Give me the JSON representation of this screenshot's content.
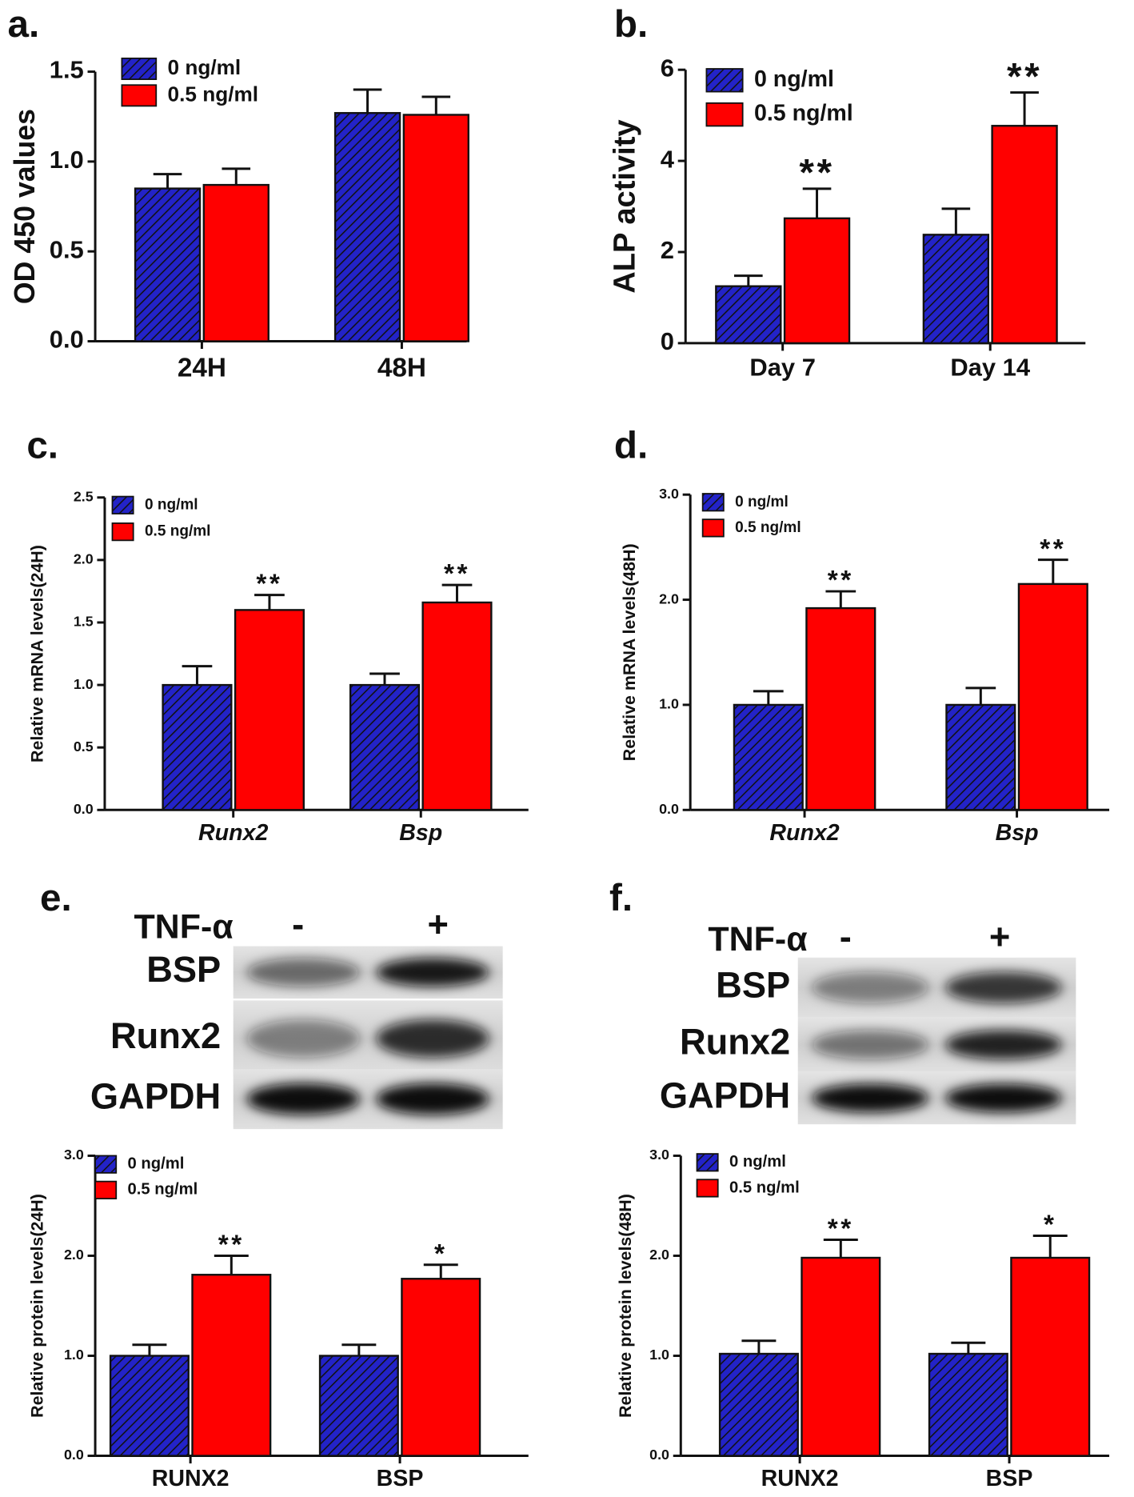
{
  "chart_data": [
    {
      "type": "bar",
      "label": "a.",
      "y_label": "OD 450 values",
      "categories": [
        "24H",
        "48H"
      ],
      "series": [
        {
          "name": "0 ng/ml",
          "color": "#2323c8",
          "hatch": true,
          "values": [
            0.85,
            1.27
          ],
          "errors": [
            0.08,
            0.13
          ]
        },
        {
          "name": "0.5 ng/ml",
          "color": "#ff0000",
          "hatch": false,
          "values": [
            0.87,
            1.26
          ],
          "errors": [
            0.09,
            0.1
          ]
        }
      ],
      "ylim": [
        0,
        1.5
      ],
      "yticks": [
        {
          "value": 0,
          "label": "0.0"
        },
        0.5,
        {
          "value": 1,
          "label": "1.0"
        },
        1.5
      ]
    },
    {
      "type": "bar",
      "label": "b.",
      "y_label": "ALP activity",
      "categories": [
        "Day 7",
        "Day 14"
      ],
      "series": [
        {
          "name": "0 ng/ml",
          "color": "#2323c8",
          "hatch": true,
          "values": [
            1.25,
            2.38
          ],
          "errors": [
            0.23,
            0.57
          ]
        },
        {
          "name": "0.5 ng/ml",
          "color": "#ff0000",
          "hatch": false,
          "values": [
            2.74,
            4.77
          ],
          "errors": [
            0.65,
            0.73
          ],
          "significance": [
            "**",
            "**"
          ]
        }
      ],
      "ylim": [
        0,
        6
      ],
      "yticks": [
        0,
        2,
        4,
        6
      ]
    },
    {
      "type": "bar",
      "label": "c.",
      "y_label": "Relative mRNA levels(24H)",
      "category_style": "italic",
      "categories": [
        "Runx2",
        "Bsp"
      ],
      "series": [
        {
          "name": "0 ng/ml",
          "color": "#2323c8",
          "hatch": true,
          "values": [
            1.0,
            1.0
          ],
          "errors": [
            0.15,
            0.09
          ]
        },
        {
          "name": "0.5 ng/ml",
          "color": "#ff0000",
          "hatch": false,
          "values": [
            1.6,
            1.66
          ],
          "errors": [
            0.12,
            0.14
          ],
          "significance": [
            "**",
            "**"
          ]
        }
      ],
      "ylim": [
        0,
        2.5
      ],
      "yticks": [
        {
          "value": 0,
          "label": "0.0"
        },
        0.5,
        {
          "value": 1,
          "label": "1.0"
        },
        1.5,
        {
          "value": 2,
          "label": "2.0"
        },
        2.5
      ]
    },
    {
      "type": "bar",
      "label": "d.",
      "y_label": "Relative mRNA levels(48H)",
      "category_style": "italic",
      "categories": [
        "Runx2",
        "Bsp"
      ],
      "series": [
        {
          "name": "0 ng/ml",
          "color": "#2323c8",
          "hatch": true,
          "values": [
            1.0,
            1.0
          ],
          "errors": [
            0.13,
            0.16
          ]
        },
        {
          "name": "0.5 ng/ml",
          "color": "#ff0000",
          "hatch": false,
          "values": [
            1.92,
            2.15
          ],
          "errors": [
            0.16,
            0.23
          ],
          "significance": [
            "**",
            "**"
          ]
        }
      ],
      "ylim": [
        0,
        3
      ],
      "yticks": [
        {
          "value": 0,
          "label": "0.0"
        },
        {
          "value": 1,
          "label": "1.0"
        },
        {
          "value": 2,
          "label": "2.0"
        },
        {
          "value": 3,
          "label": "3.0"
        }
      ]
    },
    {
      "type": "bar",
      "label": "e.",
      "y_label": "Relative protein levels(24H)",
      "categories": [
        "RUNX2",
        "BSP"
      ],
      "series": [
        {
          "name": "0 ng/ml",
          "color": "#2323c8",
          "hatch": true,
          "values": [
            1.0,
            1.0
          ],
          "errors": [
            0.11,
            0.11
          ]
        },
        {
          "name": "0.5 ng/ml",
          "color": "#ff0000",
          "hatch": false,
          "values": [
            1.81,
            1.77
          ],
          "errors": [
            0.19,
            0.14
          ],
          "significance": [
            "**",
            "*"
          ]
        }
      ],
      "ylim": [
        0,
        3
      ],
      "yticks": [
        {
          "value": 0,
          "label": "0.0"
        },
        {
          "value": 1,
          "label": "1.0"
        },
        {
          "value": 2,
          "label": "2.0"
        },
        {
          "value": 3,
          "label": "3.0"
        }
      ]
    },
    {
      "type": "bar",
      "label": "f.",
      "y_label": "Relative protein levels(48H)",
      "categories": [
        "RUNX2",
        "BSP"
      ],
      "series": [
        {
          "name": "0 ng/ml",
          "color": "#2323c8",
          "hatch": true,
          "values": [
            1.02,
            1.02
          ],
          "errors": [
            0.13,
            0.11
          ]
        },
        {
          "name": "0.5 ng/ml",
          "color": "#ff0000",
          "hatch": false,
          "values": [
            1.98,
            1.98
          ],
          "errors": [
            0.18,
            0.22
          ],
          "significance": [
            "**",
            "*"
          ]
        }
      ],
      "ylim": [
        0,
        3
      ],
      "yticks": [
        {
          "value": 0,
          "label": "0.0"
        },
        {
          "value": 1,
          "label": "1.0"
        },
        {
          "value": 2,
          "label": "2.0"
        },
        {
          "value": 3,
          "label": "3.0"
        }
      ]
    }
  ],
  "blots": [
    {
      "treatment": "TNF-α",
      "lanes": [
        "-",
        "+"
      ],
      "rows": [
        "BSP",
        "Runx2",
        "GAPDH"
      ]
    },
    {
      "treatment": "TNF-α",
      "lanes": [
        "-",
        "+"
      ],
      "rows": [
        "BSP",
        "Runx2",
        "GAPDH"
      ]
    }
  ]
}
